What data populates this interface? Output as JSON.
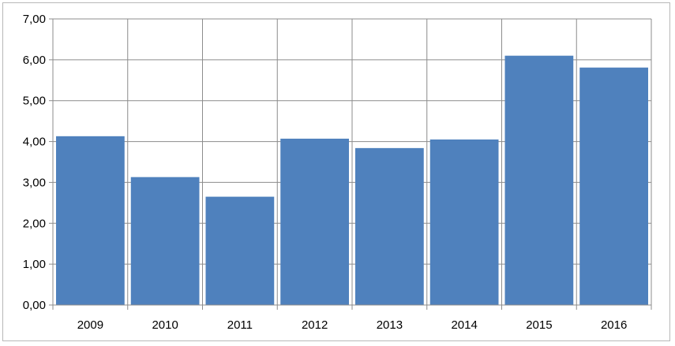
{
  "chart_data": {
    "type": "bar",
    "categories": [
      "2009",
      "2010",
      "2011",
      "2012",
      "2013",
      "2014",
      "2015",
      "2016"
    ],
    "values": [
      4.13,
      3.13,
      2.65,
      4.07,
      3.84,
      4.05,
      6.1,
      5.81
    ],
    "ylim": [
      0,
      7
    ],
    "yticks": [
      "0,00",
      "1,00",
      "2,00",
      "3,00",
      "4,00",
      "5,00",
      "6,00",
      "7,00"
    ],
    "title": "",
    "xlabel": "",
    "ylabel": "",
    "grid": true,
    "bar_color": "#4f81bd"
  }
}
